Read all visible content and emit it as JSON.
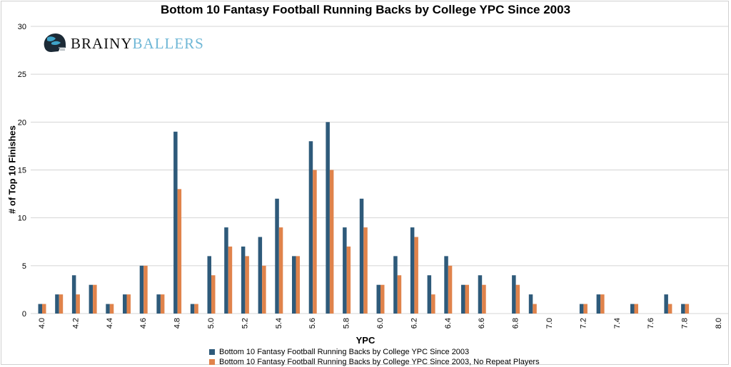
{
  "chart_data": {
    "type": "bar",
    "title": "Bottom 10 Fantasy Football Running Backs by College YPC Since 2003",
    "xlabel": "YPC",
    "ylabel": "# of Top 10 Finishes",
    "ylim": [
      0,
      30
    ],
    "yticks": [
      "0",
      "5",
      "10",
      "15",
      "20",
      "25",
      "30"
    ],
    "grid": true,
    "legend_position": "bottom",
    "categories": [
      "4.0",
      "4.1",
      "4.2",
      "4.3",
      "4.4",
      "4.5",
      "4.6",
      "4.7",
      "4.8",
      "4.9",
      "5.0",
      "5.1",
      "5.2",
      "5.3",
      "5.4",
      "5.5",
      "5.6",
      "5.7",
      "5.8",
      "5.9",
      "6.0",
      "6.1",
      "6.2",
      "6.3",
      "6.4",
      "6.5",
      "6.6",
      "6.7",
      "6.8",
      "6.9",
      "7.0",
      "7.1",
      "7.2",
      "7.3",
      "7.4",
      "7.5",
      "7.6",
      "7.7",
      "7.8",
      "7.9",
      "8.0"
    ],
    "shown_tick_labels": [
      "4.0",
      "4.2",
      "4.4",
      "4.6",
      "4.8",
      "5.0",
      "5.2",
      "5.4",
      "5.6",
      "5.8",
      "6.0",
      "6.2",
      "6.4",
      "6.6",
      "6.8",
      "7.0",
      "7.2",
      "7.4",
      "7.6",
      "7.8",
      "8.0"
    ],
    "series": [
      {
        "name": "Bottom 10 Fantasy Football Running Backs by College YPC Since 2003",
        "color": "#2e5a7a",
        "values": [
          1,
          2,
          4,
          3,
          1,
          2,
          5,
          2,
          19,
          1,
          6,
          9,
          7,
          8,
          12,
          6,
          18,
          20,
          9,
          12,
          3,
          6,
          9,
          4,
          6,
          3,
          4,
          0,
          4,
          2,
          0,
          0,
          1,
          2,
          0,
          1,
          0,
          2,
          1,
          0,
          0
        ]
      },
      {
        "name": "Bottom 10 Fantasy Football Running Backs by College YPC Since 2003, No Repeat Players",
        "color": "#e0834b",
        "values": [
          1,
          2,
          2,
          3,
          1,
          2,
          5,
          2,
          13,
          1,
          4,
          7,
          6,
          5,
          9,
          6,
          15,
          15,
          7,
          9,
          3,
          4,
          8,
          2,
          5,
          3,
          3,
          0,
          3,
          1,
          0,
          0,
          1,
          2,
          0,
          1,
          0,
          1,
          1,
          0,
          0
        ]
      }
    ]
  },
  "logo": {
    "part1": "BRAINY",
    "part2": "BALLERS"
  }
}
